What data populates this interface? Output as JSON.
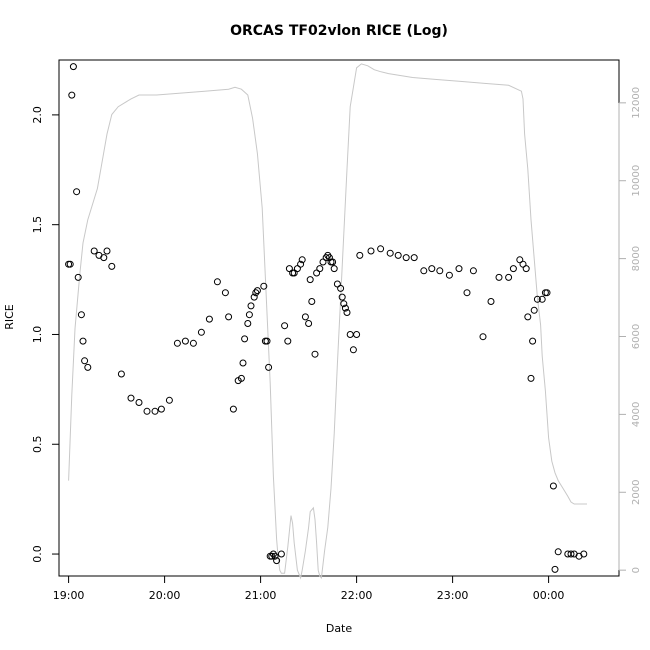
{
  "chart_data": {
    "type": "scatter",
    "title": "ORCAS TF02vlon RICE (Log)",
    "xlabel": "Date",
    "ylabel": "RICE",
    "xlim": [
      "18:54",
      "00:44"
    ],
    "ylim": [
      -0.1,
      2.25
    ],
    "y2lim": [
      -150,
      13100
    ],
    "x_ticks": [
      "19:00",
      "20:00",
      "21:00",
      "22:00",
      "23:00",
      "00:00"
    ],
    "y_ticks": [
      "0.0",
      "0.5",
      "1.0",
      "1.5",
      "2.0"
    ],
    "y2_ticks": [
      "0",
      "2000",
      "4000",
      "6000",
      "8000",
      "10000",
      "12000"
    ],
    "grid": false,
    "colors": {
      "points": "#000000",
      "altitude_line": "#c8c8c8",
      "secondary_axis": "#b0b0b0"
    },
    "series": [
      {
        "kind": "points",
        "x": [
          "19:00",
          "19:01",
          "19:02",
          "19:03",
          "19:05",
          "19:06",
          "19:08",
          "19:09",
          "19:10",
          "19:12",
          "19:16",
          "19:19",
          "19:22",
          "19:24",
          "19:27",
          "19:33",
          "19:39",
          "19:44",
          "19:49",
          "19:54",
          "19:58",
          "20:03",
          "20:08",
          "20:13",
          "20:18",
          "20:23",
          "20:28",
          "20:33",
          "20:38",
          "20:40",
          "20:43",
          "20:46",
          "20:48",
          "20:49",
          "20:50",
          "20:52",
          "20:53",
          "20:54",
          "20:56",
          "20:57",
          "20:58",
          "21:02",
          "21:03",
          "21:04",
          "21:05",
          "21:06",
          "21:07",
          "21:08",
          "21:09",
          "21:10",
          "21:13",
          "21:15",
          "21:17",
          "21:18",
          "21:20",
          "21:21",
          "21:23",
          "21:25",
          "21:26",
          "21:28",
          "21:30",
          "21:31",
          "21:32",
          "21:34",
          "21:35",
          "21:37",
          "21:39",
          "21:41",
          "21:42",
          "21:43",
          "21:44",
          "21:45",
          "21:46",
          "21:48",
          "21:50",
          "21:51",
          "21:52",
          "21:53",
          "21:54",
          "21:56",
          "21:58",
          "22:00",
          "22:02",
          "22:09",
          "22:15",
          "22:21",
          "22:26",
          "22:31",
          "22:36",
          "22:42",
          "22:47",
          "22:52",
          "22:58",
          "23:04",
          "23:09",
          "23:13",
          "23:19",
          "23:24",
          "23:29",
          "23:35",
          "23:38",
          "23:42",
          "23:44",
          "23:46",
          "23:47",
          "23:49",
          "23:50",
          "23:51",
          "23:53",
          "23:56",
          "23:58",
          "23:59",
          "00:03",
          "00:04",
          "00:06",
          "00:12",
          "00:14",
          "00:16",
          "00:19",
          "00:22"
        ],
        "y": [
          1.32,
          1.32,
          2.09,
          2.22,
          1.65,
          1.26,
          1.09,
          0.97,
          0.88,
          0.85,
          1.38,
          1.36,
          1.35,
          1.38,
          1.31,
          0.82,
          0.71,
          0.69,
          0.65,
          0.65,
          0.66,
          0.7,
          0.96,
          0.97,
          0.96,
          1.01,
          1.07,
          1.24,
          1.19,
          1.08,
          0.66,
          0.79,
          0.8,
          0.87,
          0.98,
          1.05,
          1.09,
          1.13,
          1.17,
          1.19,
          1.2,
          1.22,
          0.97,
          0.97,
          0.85,
          -0.01,
          -0.01,
          0.0,
          -0.01,
          -0.03,
          0.0,
          1.04,
          0.97,
          1.3,
          1.28,
          1.28,
          1.3,
          1.32,
          1.34,
          1.08,
          1.05,
          1.25,
          1.15,
          0.91,
          1.28,
          1.3,
          1.33,
          1.35,
          1.36,
          1.35,
          1.33,
          1.33,
          1.3,
          1.23,
          1.21,
          1.17,
          1.14,
          1.12,
          1.1,
          1.0,
          0.93,
          1.0,
          1.36,
          1.38,
          1.39,
          1.37,
          1.36,
          1.35,
          1.35,
          1.29,
          1.3,
          1.29,
          1.27,
          1.3,
          1.19,
          1.29,
          0.99,
          1.15,
          1.26,
          1.26,
          1.3,
          1.34,
          1.32,
          1.3,
          1.08,
          0.8,
          0.97,
          1.11,
          1.16,
          1.16,
          1.19,
          1.19,
          0.31,
          -0.07,
          0.01,
          0.0,
          0.0,
          0.0,
          -0.01,
          0.0
        ]
      },
      {
        "kind": "line",
        "axis": "right",
        "x": [
          "19:00",
          "19:02",
          "19:04",
          "19:07",
          "19:09",
          "19:12",
          "19:15",
          "19:18",
          "19:21",
          "19:24",
          "19:27",
          "19:31",
          "19:35",
          "19:39",
          "19:44",
          "19:55",
          "20:10",
          "20:25",
          "20:40",
          "20:44",
          "20:48",
          "20:52",
          "20:55",
          "20:58",
          "21:01",
          "21:03",
          "21:06",
          "21:08",
          "21:09",
          "21:10",
          "21:11",
          "21:12",
          "21:13",
          "21:15",
          "21:17",
          "21:19",
          "21:20",
          "21:21",
          "21:23",
          "21:25",
          "21:26",
          "21:28",
          "21:30",
          "21:31",
          "21:33",
          "21:34",
          "21:35",
          "21:36",
          "21:37",
          "21:38",
          "21:40",
          "21:42",
          "21:44",
          "21:46",
          "21:48",
          "21:51",
          "21:54",
          "21:56",
          "21:58",
          "22:00",
          "22:03",
          "22:07",
          "22:11",
          "22:15",
          "22:20",
          "22:35",
          "22:50",
          "23:05",
          "23:20",
          "23:35",
          "23:43",
          "23:44",
          "23:45",
          "23:47",
          "23:49",
          "23:51",
          "23:53",
          "23:55",
          "23:56",
          "23:58",
          "23:59",
          "00:00",
          "00:02",
          "00:04",
          "00:06",
          "00:09",
          "00:12",
          "00:14",
          "00:16",
          "00:19",
          "00:21",
          "00:23",
          "00:24"
        ],
        "y": [
          2300,
          4500,
          6200,
          7600,
          8400,
          9000,
          9400,
          9800,
          10500,
          11200,
          11700,
          11900,
          12000,
          12100,
          12200,
          12200,
          12250,
          12300,
          12350,
          12400,
          12350,
          12200,
          11600,
          10700,
          9300,
          7500,
          4800,
          2400,
          1600,
          800,
          300,
          0,
          -80,
          -80,
          600,
          1400,
          1200,
          700,
          0,
          -200,
          0,
          500,
          1100,
          1500,
          1600,
          1300,
          700,
          0,
          -150,
          -200,
          500,
          1100,
          2100,
          3500,
          5300,
          7800,
          10300,
          11900,
          12400,
          12900,
          13000,
          12950,
          12850,
          12800,
          12750,
          12650,
          12600,
          12550,
          12500,
          12450,
          12300,
          12100,
          11200,
          10300,
          9000,
          8000,
          7000,
          6300,
          5500,
          4600,
          4000,
          3400,
          2800,
          2500,
          2300,
          2100,
          1900,
          1750,
          1700,
          1700,
          1700,
          1700,
          1700
        ]
      }
    ]
  }
}
